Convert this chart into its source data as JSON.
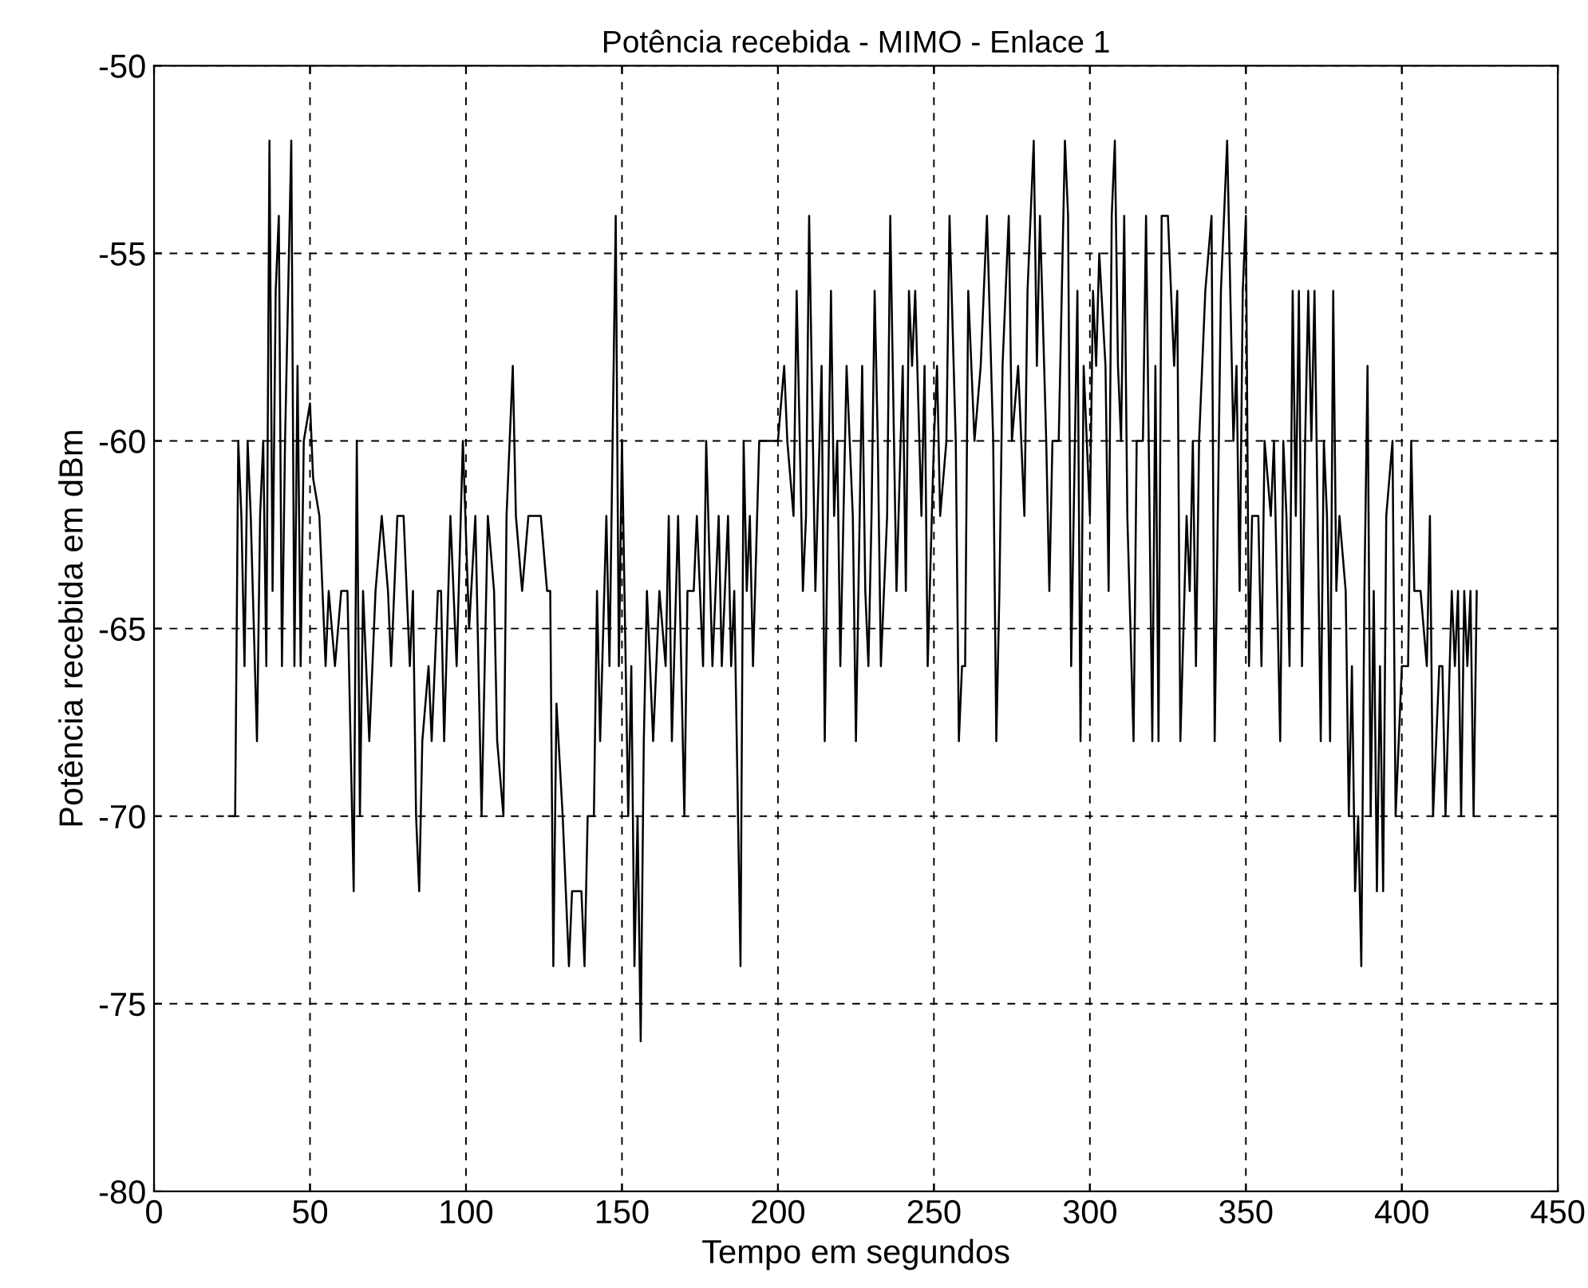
{
  "chart_data": {
    "type": "line",
    "title": "Potência recebida - MIMO - Enlace 1",
    "xlabel": "Tempo em segundos",
    "ylabel": "Potência recebida em dBm",
    "xlim": [
      0,
      450
    ],
    "xticks": [
      0,
      50,
      100,
      150,
      200,
      250,
      300,
      350,
      400,
      450
    ],
    "ylim": [
      -80,
      -50
    ],
    "yticks": [
      -80,
      -75,
      -70,
      -65,
      -60,
      -55,
      -50
    ],
    "grid": true,
    "series": [
      {
        "color": "#000000",
        "x": [
          24,
          26,
          27,
          28,
          29,
          30,
          31,
          33,
          34,
          35,
          36,
          37,
          38,
          39,
          40,
          41,
          42,
          44,
          45,
          46,
          47,
          48,
          50,
          51,
          53,
          55,
          56,
          58,
          60,
          62,
          63,
          64,
          65,
          66,
          67,
          68,
          69,
          71,
          73,
          75,
          76,
          77,
          78,
          80,
          82,
          83,
          84,
          85,
          86,
          88,
          89,
          91,
          92,
          93,
          95,
          96,
          97,
          99,
          101,
          103,
          105,
          107,
          109,
          110,
          112,
          113,
          115,
          116,
          118,
          120,
          124,
          126,
          127,
          128,
          129,
          131,
          132,
          133,
          134,
          137,
          138,
          139,
          141,
          142,
          143,
          145,
          146,
          147,
          148,
          149,
          150,
          152,
          153,
          154,
          155,
          156,
          157,
          158,
          160,
          162,
          164,
          165,
          166,
          168,
          170,
          171,
          173,
          174,
          176,
          177,
          179,
          181,
          182,
          184,
          185,
          186,
          188,
          189,
          190,
          191,
          192,
          194,
          196,
          200,
          202,
          203,
          205,
          206,
          208,
          209,
          210,
          212,
          214,
          215,
          217,
          218,
          219,
          220,
          222,
          224,
          225,
          227,
          228,
          229,
          230,
          231,
          232,
          233,
          235,
          236,
          238,
          240,
          241,
          242,
          243,
          244,
          246,
          247,
          248,
          250,
          251,
          252,
          254,
          255,
          257,
          258,
          259,
          260,
          261,
          263,
          265,
          267,
          269,
          270,
          271,
          272,
          274,
          275,
          277,
          279,
          280,
          282,
          283,
          284,
          286,
          287,
          288,
          290,
          292,
          293,
          294,
          296,
          297,
          298,
          300,
          301,
          302,
          303,
          305,
          306,
          307,
          308,
          309,
          310,
          311,
          312,
          314,
          315,
          317,
          318,
          320,
          321,
          322,
          323,
          325,
          327,
          328,
          329,
          331,
          332,
          333,
          334,
          335,
          337,
          339,
          340,
          342,
          343,
          344,
          345,
          346,
          347,
          348,
          349,
          350,
          351,
          352,
          354,
          355,
          356,
          358,
          359,
          361,
          362,
          363,
          364,
          365,
          366,
          367,
          368,
          369,
          370,
          371,
          372,
          374,
          375,
          376,
          377,
          378,
          379,
          380,
          382,
          383,
          384,
          385,
          386,
          387,
          388,
          389,
          390,
          391,
          392,
          393,
          394,
          395,
          397,
          398,
          400,
          402,
          403,
          404,
          406,
          408,
          409,
          410,
          412,
          413,
          414,
          416,
          417,
          418,
          419,
          420,
          421,
          422,
          423,
          424
        ],
        "values": [
          -70,
          -70,
          -60,
          -62,
          -66,
          -60,
          -62,
          -68,
          -62,
          -60,
          -66,
          -52,
          -64,
          -56,
          -54,
          -66,
          -60,
          -52,
          -66,
          -58,
          -66,
          -60,
          -59,
          -61,
          -62,
          -66,
          -64,
          -66,
          -64,
          -64,
          -68,
          -72,
          -60,
          -70,
          -64,
          -66,
          -68,
          -64,
          -62,
          -64,
          -66,
          -64,
          -62,
          -62,
          -66,
          -64,
          -70,
          -72,
          -68,
          -66,
          -68,
          -64,
          -64,
          -68,
          -62,
          -64,
          -66,
          -60,
          -65,
          -62,
          -70,
          -62,
          -64,
          -68,
          -70,
          -62,
          -58,
          -62,
          -64,
          -62,
          -62,
          -64,
          -64,
          -74,
          -67,
          -70,
          -72,
          -74,
          -72,
          -72,
          -74,
          -70,
          -70,
          -64,
          -68,
          -62,
          -66,
          -60,
          -54,
          -66,
          -60,
          -70,
          -66,
          -74,
          -70,
          -76,
          -68,
          -64,
          -68,
          -64,
          -66,
          -62,
          -68,
          -62,
          -70,
          -64,
          -64,
          -62,
          -66,
          -60,
          -66,
          -62,
          -66,
          -62,
          -66,
          -64,
          -74,
          -60,
          -64,
          -62,
          -66,
          -60,
          -60,
          -60,
          -58,
          -60,
          -62,
          -56,
          -64,
          -62,
          -54,
          -64,
          -58,
          -68,
          -56,
          -62,
          -60,
          -66,
          -58,
          -62,
          -68,
          -58,
          -64,
          -66,
          -62,
          -56,
          -60,
          -66,
          -62,
          -54,
          -64,
          -58,
          -64,
          -56,
          -58,
          -56,
          -62,
          -58,
          -66,
          -60,
          -58,
          -62,
          -60,
          -54,
          -60,
          -68,
          -66,
          -66,
          -56,
          -60,
          -58,
          -54,
          -60,
          -68,
          -64,
          -58,
          -54,
          -60,
          -58,
          -62,
          -56,
          -52,
          -58,
          -54,
          -60,
          -64,
          -60,
          -60,
          -52,
          -54,
          -66,
          -56,
          -68,
          -58,
          -62,
          -56,
          -58,
          -55,
          -58,
          -64,
          -54,
          -52,
          -58,
          -60,
          -54,
          -62,
          -68,
          -60,
          -60,
          -54,
          -68,
          -58,
          -68,
          -54,
          -54,
          -58,
          -56,
          -68,
          -62,
          -64,
          -60,
          -66,
          -60,
          -56,
          -54,
          -68,
          -56,
          -54,
          -52,
          -56,
          -60,
          -58,
          -64,
          -56,
          -54,
          -66,
          -62,
          -62,
          -66,
          -60,
          -62,
          -60,
          -68,
          -60,
          -62,
          -66,
          -56,
          -62,
          -56,
          -66,
          -60,
          -56,
          -60,
          -56,
          -68,
          -60,
          -62,
          -68,
          -56,
          -64,
          -62,
          -64,
          -70,
          -66,
          -72,
          -70,
          -74,
          -64,
          -58,
          -70,
          -64,
          -72,
          -66,
          -72,
          -62,
          -60,
          -70,
          -66,
          -66,
          -60,
          -64,
          -64,
          -66,
          -62,
          -70,
          -66,
          -66,
          -70,
          -64,
          -66,
          -64,
          -70,
          -64,
          -66,
          -64,
          -70,
          -64
        ]
      }
    ]
  }
}
